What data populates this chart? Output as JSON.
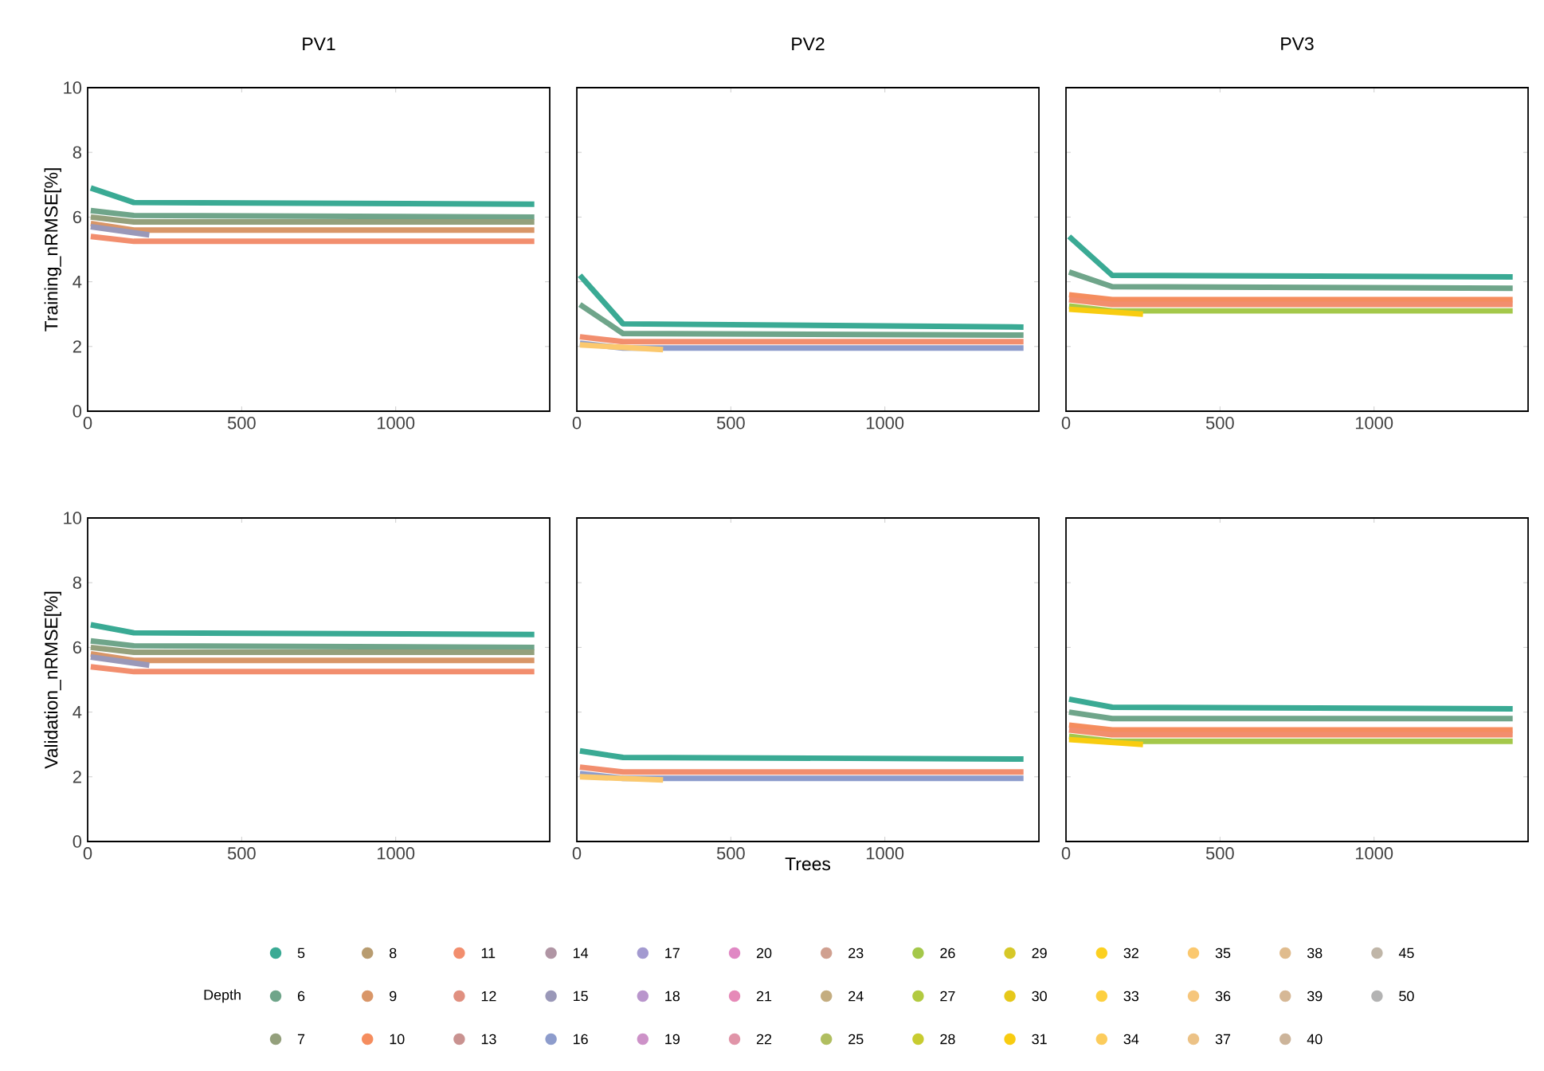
{
  "chart_data": [
    {
      "type": "line",
      "title": "PV1",
      "ylabel": "Training_nRMSE[%]",
      "legend": "bottom",
      "legend_title": "Depth",
      "xlim": [
        0,
        1500
      ],
      "ylim": [
        0,
        10
      ],
      "xticks": [
        0,
        500,
        1000
      ],
      "yticks": [
        0,
        2,
        4,
        6,
        8,
        10
      ],
      "x": [
        10,
        150,
        1450
      ],
      "series": [
        {
          "name": "5",
          "color": "#3AAA94",
          "values": [
            6.9,
            6.45,
            6.4
          ]
        },
        {
          "name": "6",
          "color": "#6FA58A",
          "values": [
            6.2,
            6.05,
            6.0
          ]
        },
        {
          "name": "7",
          "color": "#94A07C",
          "values": [
            6.0,
            5.85,
            5.85
          ]
        },
        {
          "name": "8",
          "color": "#B89C70",
          "values": [
            null,
            null,
            null
          ]
        },
        {
          "name": "9",
          "color": "#D99668",
          "values": [
            5.8,
            5.6,
            5.6
          ]
        },
        {
          "name": "10",
          "color": "#F58D5E",
          "values": [
            null,
            null,
            null
          ]
        },
        {
          "name": "11",
          "color": "#F28E6E",
          "values": [
            5.4,
            5.25,
            5.25
          ]
        },
        {
          "name": "12",
          "color": "#E09080",
          "values": [
            null,
            null,
            null
          ]
        },
        {
          "name": "13",
          "color": "#C99290",
          "values": [
            null,
            null,
            null
          ]
        },
        {
          "name": "14",
          "color": "#B095A4",
          "values": [
            null,
            null,
            null
          ]
        },
        {
          "name": "15",
          "color": "#9A98B8",
          "x": [
            10,
            200
          ],
          "values": [
            5.7,
            5.45
          ]
        },
        {
          "name": "16",
          "color": "#8D9CCC",
          "values": [
            null,
            null,
            null
          ]
        },
        {
          "name": "17",
          "color": "#A39AD0",
          "values": [
            null,
            null,
            null
          ]
        },
        {
          "name": "18",
          "color": "#B996CC",
          "values": [
            null,
            null,
            null
          ]
        },
        {
          "name": "19",
          "color": "#CD92C8",
          "values": [
            null,
            null,
            null
          ]
        },
        {
          "name": "20",
          "color": "#E088C4",
          "values": [
            null,
            null,
            null
          ]
        },
        {
          "name": "21",
          "color": "#E68AB8",
          "values": [
            null,
            null,
            null
          ]
        },
        {
          "name": "22",
          "color": "#E094A8",
          "values": [
            null,
            null,
            null
          ]
        },
        {
          "name": "23",
          "color": "#D0A090",
          "values": [
            null,
            null,
            null
          ]
        },
        {
          "name": "24",
          "color": "#C4AD80",
          "values": [
            null,
            null,
            null
          ]
        },
        {
          "name": "25",
          "color": "#B0BE60",
          "values": [
            null,
            null,
            null
          ]
        },
        {
          "name": "26",
          "color": "#A4C84A",
          "values": [
            null,
            null,
            null
          ]
        },
        {
          "name": "27",
          "color": "#B2CA40",
          "values": [
            null,
            null,
            null
          ]
        },
        {
          "name": "28",
          "color": "#C8CC30",
          "values": [
            null,
            null,
            null
          ]
        },
        {
          "name": "29",
          "color": "#D6C828",
          "values": [
            null,
            null,
            null
          ]
        },
        {
          "name": "30",
          "color": "#E6C81A",
          "values": [
            null,
            null,
            null
          ]
        },
        {
          "name": "31",
          "color": "#F8CC10",
          "values": [
            null,
            null,
            null
          ]
        },
        {
          "name": "32",
          "color": "#FCD020",
          "values": [
            null,
            null,
            null
          ]
        },
        {
          "name": "33",
          "color": "#FDD040",
          "values": [
            null,
            null,
            null
          ]
        },
        {
          "name": "34",
          "color": "#FCCC5C",
          "values": [
            null,
            null,
            null
          ]
        },
        {
          "name": "35",
          "color": "#FBC86E",
          "values": [
            null,
            null,
            null
          ]
        },
        {
          "name": "36",
          "color": "#F6C67C",
          "values": [
            null,
            null,
            null
          ]
        },
        {
          "name": "37",
          "color": "#ECC286",
          "values": [
            null,
            null,
            null
          ]
        },
        {
          "name": "38",
          "color": "#E0BC8E",
          "values": [
            null,
            null,
            null
          ]
        },
        {
          "name": "39",
          "color": "#D6B896",
          "values": [
            null,
            null,
            null
          ]
        },
        {
          "name": "40",
          "color": "#CCB49A",
          "values": [
            null,
            null,
            null
          ]
        },
        {
          "name": "45",
          "color": "#C0B6A8",
          "values": [
            null,
            null,
            null
          ]
        },
        {
          "name": "50",
          "color": "#B3B3B3",
          "values": [
            null,
            null,
            null
          ]
        }
      ]
    },
    {
      "type": "line",
      "title": "PV2",
      "xlim": [
        0,
        1500
      ],
      "ylim": [
        0,
        10
      ],
      "xticks": [
        0,
        500,
        1000
      ],
      "yticks": [
        0,
        2,
        4,
        6,
        8,
        10
      ],
      "tick_labels": "x",
      "x": [
        10,
        150,
        1450
      ],
      "series": [
        {
          "color": "#3AAA94",
          "values": [
            4.2,
            2.7,
            2.6
          ]
        },
        {
          "color": "#6FA58A",
          "values": [
            3.3,
            2.4,
            2.35
          ]
        },
        {
          "color": "#F28E6E",
          "values": [
            2.3,
            2.15,
            2.15
          ]
        },
        {
          "color": "#8D9CCC",
          "values": [
            2.1,
            1.95,
            1.95
          ]
        },
        {
          "color": "#FBC86E",
          "x": [
            10,
            280
          ],
          "values": [
            2.05,
            1.9
          ]
        }
      ]
    },
    {
      "type": "line",
      "title": "PV3",
      "xlim": [
        0,
        1500
      ],
      "ylim": [
        0,
        10
      ],
      "xticks": [
        0,
        500,
        1000
      ],
      "yticks": [
        0,
        2,
        4,
        6,
        8,
        10
      ],
      "tick_labels": "x",
      "x": [
        10,
        150,
        1450
      ],
      "series": [
        {
          "color": "#3AAA94",
          "values": [
            5.4,
            4.2,
            4.15
          ]
        },
        {
          "color": "#6FA58A",
          "values": [
            4.3,
            3.85,
            3.8
          ]
        },
        {
          "color": "#F58D5E",
          "values": [
            3.6,
            3.45,
            3.45
          ]
        },
        {
          "color": "#F28E6E",
          "values": [
            3.45,
            3.3,
            3.3
          ]
        },
        {
          "color": "#A4C84A",
          "values": [
            3.25,
            3.1,
            3.1
          ]
        },
        {
          "color": "#F8CC10",
          "x": [
            10,
            250
          ],
          "values": [
            3.15,
            3.0
          ]
        }
      ]
    },
    {
      "type": "line",
      "ylabel": "Validation_nRMSE[%]",
      "xlim": [
        0,
        1500
      ],
      "ylim": [
        0,
        10
      ],
      "xticks": [
        0,
        500,
        1000
      ],
      "yticks": [
        0,
        2,
        4,
        6,
        8,
        10
      ],
      "x": [
        10,
        150,
        1450
      ],
      "series": [
        {
          "color": "#3AAA94",
          "values": [
            6.7,
            6.45,
            6.4
          ]
        },
        {
          "color": "#6FA58A",
          "values": [
            6.2,
            6.05,
            6.0
          ]
        },
        {
          "color": "#94A07C",
          "values": [
            6.0,
            5.85,
            5.85
          ]
        },
        {
          "color": "#D99668",
          "values": [
            5.8,
            5.6,
            5.6
          ]
        },
        {
          "color": "#F28E6E",
          "values": [
            5.4,
            5.25,
            5.25
          ]
        },
        {
          "color": "#9A98B8",
          "x": [
            10,
            200
          ],
          "values": [
            5.7,
            5.45
          ]
        }
      ]
    },
    {
      "type": "line",
      "xlabel": "Trees",
      "xlim": [
        0,
        1500
      ],
      "ylim": [
        0,
        10
      ],
      "xticks": [
        0,
        500,
        1000
      ],
      "yticks": [
        0,
        2,
        4,
        6,
        8,
        10
      ],
      "tick_labels": "x",
      "x": [
        10,
        150,
        1450
      ],
      "series": [
        {
          "color": "#3AAA94",
          "values": [
            2.8,
            2.6,
            2.55
          ]
        },
        {
          "color": "#F28E6E",
          "values": [
            2.3,
            2.15,
            2.15
          ]
        },
        {
          "color": "#8D9CCC",
          "values": [
            2.1,
            1.95,
            1.95
          ]
        },
        {
          "color": "#FBC86E",
          "x": [
            10,
            280
          ],
          "values": [
            2.0,
            1.9
          ]
        }
      ]
    },
    {
      "type": "line",
      "xlim": [
        0,
        1500
      ],
      "ylim": [
        0,
        10
      ],
      "xticks": [
        0,
        500,
        1000
      ],
      "yticks": [
        0,
        2,
        4,
        6,
        8,
        10
      ],
      "tick_labels": "x",
      "x": [
        10,
        150,
        1450
      ],
      "series": [
        {
          "color": "#3AAA94",
          "values": [
            4.4,
            4.15,
            4.1
          ]
        },
        {
          "color": "#6FA58A",
          "values": [
            4.0,
            3.8,
            3.8
          ]
        },
        {
          "color": "#F58D5E",
          "values": [
            3.6,
            3.45,
            3.45
          ]
        },
        {
          "color": "#F28E6E",
          "values": [
            3.45,
            3.3,
            3.3
          ]
        },
        {
          "color": "#A4C84A",
          "values": [
            3.25,
            3.1,
            3.1
          ]
        },
        {
          "color": "#F8CC10",
          "x": [
            10,
            250
          ],
          "values": [
            3.15,
            3.0
          ]
        }
      ]
    }
  ]
}
